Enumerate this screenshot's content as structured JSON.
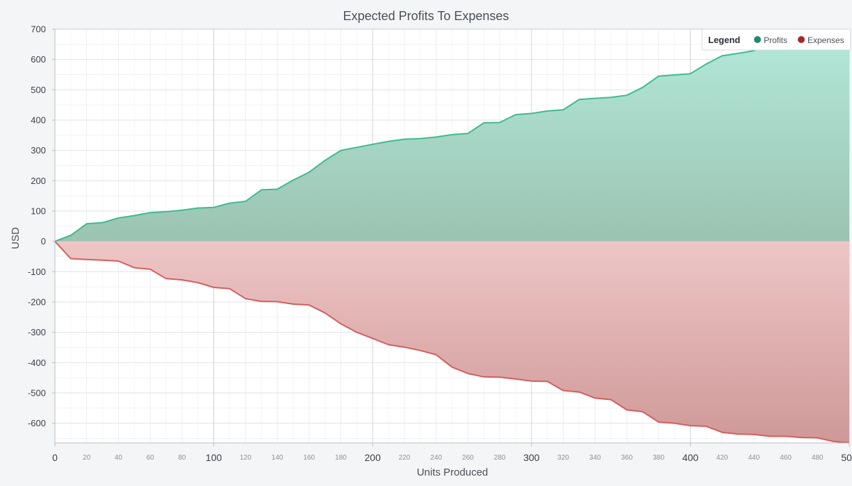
{
  "chart_data": {
    "type": "area",
    "title": "Expected Profits To Expenses",
    "xlabel": "Units Produced",
    "ylabel": "USD",
    "xlim": [
      0,
      500
    ],
    "ylim": [
      -665,
      700
    ],
    "yticks": [
      700,
      600,
      500,
      400,
      300,
      200,
      100,
      0,
      -100,
      -200,
      -300,
      -400,
      -500,
      -600
    ],
    "xticks_major": [
      0,
      100,
      200,
      300,
      400,
      500
    ],
    "xticks_minor": [
      20,
      40,
      60,
      80,
      120,
      140,
      160,
      180,
      220,
      240,
      260,
      280,
      320,
      340,
      360,
      380,
      420,
      440,
      460,
      480
    ],
    "grid": true,
    "legend": {
      "title": "Legend",
      "placement": "top-right"
    },
    "x": [
      0,
      10,
      20,
      30,
      40,
      50,
      60,
      70,
      80,
      90,
      100,
      110,
      120,
      130,
      140,
      150,
      160,
      170,
      180,
      190,
      200,
      210,
      220,
      230,
      240,
      250,
      260,
      270,
      280,
      290,
      300,
      310,
      320,
      330,
      340,
      350,
      360,
      370,
      380,
      390,
      400,
      410,
      420,
      430,
      440,
      450,
      460,
      470,
      480,
      490,
      500
    ],
    "series": [
      {
        "name": "Profits",
        "color": "#1f8a6e",
        "line_color": "#3dbb8f",
        "fill_top": "#b3e9d9",
        "fill_bottom": "#9bc3b2",
        "values": [
          0,
          20,
          58,
          62,
          77,
          85,
          95,
          98,
          103,
          110,
          112,
          126,
          132,
          170,
          172,
          202,
          228,
          267,
          300,
          310,
          320,
          330,
          337,
          339,
          344,
          352,
          356,
          391,
          392,
          418,
          422,
          430,
          434,
          468,
          472,
          475,
          482,
          508,
          545,
          549,
          553,
          585,
          612,
          620,
          629,
          660,
          670,
          675,
          685,
          695,
          700
        ]
      },
      {
        "name": "Expenses",
        "color": "#a52a2a",
        "line_color": "#d85c5c",
        "fill_top": "#eec6c6",
        "fill_bottom": "#cf9898",
        "values": [
          0,
          -57,
          -60,
          -62,
          -65,
          -87,
          -92,
          -123,
          -127,
          -136,
          -152,
          -156,
          -189,
          -198,
          -199,
          -207,
          -210,
          -236,
          -272,
          -300,
          -320,
          -341,
          -349,
          -360,
          -374,
          -415,
          -436,
          -447,
          -448,
          -454,
          -461,
          -462,
          -492,
          -497,
          -517,
          -522,
          -556,
          -562,
          -596,
          -600,
          -608,
          -610,
          -630,
          -636,
          -637,
          -643,
          -643,
          -647,
          -648,
          -660,
          -664
        ]
      }
    ]
  }
}
